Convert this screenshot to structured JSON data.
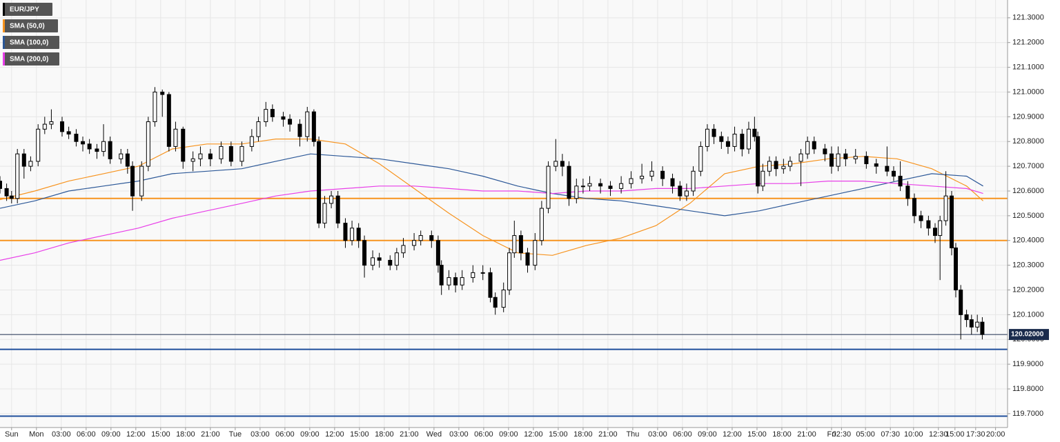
{
  "chart_data": {
    "type": "candlestick",
    "name": "EUR/JPY",
    "color": "#000000",
    "up_color": "#ffffff",
    "x": [
      -1.4,
      -0.6,
      0,
      0.7,
      1.5,
      2.3,
      3.2,
      4.0,
      4.8,
      6.1,
      6.9,
      7.8,
      8.6,
      9.4,
      10.3,
      11.1,
      11.9,
      13.2,
      14.0,
      14.6,
      15.7,
      16.5,
      17.3,
      18.2,
      19.0,
      19.8,
      20.7,
      21.9,
      22.8,
      24.0,
      25.3,
      26.5,
      27.8,
      29.0,
      29.8,
      30.7,
      31.5,
      32.8,
      33.6,
      34.8,
      35.7,
      36.5,
      37.1,
      37.8,
      38.6,
      39.4,
      40.3,
      41.1,
      41.9,
      42.6,
      43.6,
      44.4,
      45.7,
      46.5,
      47.3,
      48.6,
      49.4,
      50.7,
      51.5,
      51.9,
      52.8,
      53.6,
      54.4,
      55.7,
      56.9,
      57.8,
      58.4,
      59.4,
      60.1,
      60.7,
      61.5,
      62.3,
      63.2,
      64.0,
      64.8,
      65.7,
      66.5,
      67.3,
      68.2,
      69.0,
      69.8,
      71.1,
      72.3,
      73.6,
      74.8,
      76.1,
      77.3,
      78.6,
      79.8,
      80.7,
      81.5,
      82.3,
      83.2,
      84.0,
      84.8,
      85.7,
      86.5,
      87.3,
      88.2,
      89.0,
      89.7,
      90.1,
      90.7,
      91.5,
      92.3,
      93.2,
      94.0,
      95.3,
      96.1,
      96.9,
      98.2,
      99.0,
      99.8,
      100.7,
      101.9,
      103.2,
      104.4,
      105.7,
      106.5,
      107.3,
      108.2,
      109.0,
      109.8,
      110.7,
      111.5,
      112.1,
      112.8,
      113.5,
      114.0,
      114.6,
      115.3,
      115.9,
      116.6,
      117.2
    ],
    "open": [
      120.64,
      120.61,
      120.58,
      120.57,
      120.75,
      120.7,
      120.72,
      120.85,
      120.87,
      120.88,
      120.84,
      120.83,
      120.8,
      120.79,
      120.77,
      120.76,
      120.8,
      120.73,
      120.75,
      120.7,
      120.58,
      120.7,
      120.88,
      121.0,
      120.99,
      120.78,
      120.85,
      120.72,
      120.73,
      120.75,
      120.73,
      120.78,
      120.72,
      120.78,
      120.82,
      120.88,
      120.93,
      120.9,
      120.89,
      120.87,
      120.82,
      120.92,
      120.8,
      120.47,
      120.55,
      120.58,
      120.47,
      120.4,
      120.45,
      120.4,
      120.3,
      120.33,
      120.32,
      120.3,
      120.35,
      120.38,
      120.4,
      120.42,
      120.4,
      120.3,
      120.22,
      120.25,
      120.22,
      120.25,
      120.27,
      120.27,
      120.17,
      120.13,
      120.2,
      120.35,
      120.42,
      120.35,
      120.3,
      120.4,
      120.53,
      120.7,
      120.72,
      120.7,
      120.57,
      120.62,
      120.62,
      120.63,
      120.62,
      120.61,
      120.63,
      120.65,
      120.66,
      120.68,
      120.65,
      120.62,
      120.58,
      120.6,
      120.68,
      120.78,
      120.85,
      120.82,
      120.8,
      120.78,
      120.83,
      120.77,
      120.85,
      120.82,
      120.62,
      120.68,
      120.72,
      120.69,
      120.7,
      120.72,
      120.75,
      120.8,
      120.77,
      120.75,
      120.7,
      120.75,
      120.73,
      120.74,
      120.71,
      120.7,
      120.68,
      120.66,
      120.62,
      120.57,
      120.5,
      120.48,
      120.45,
      120.42,
      120.48,
      120.58,
      120.37,
      120.2,
      120.1,
      120.08,
      120.05,
      120.07
    ],
    "high": [
      120.66,
      120.63,
      120.6,
      120.77,
      120.77,
      120.74,
      120.87,
      120.9,
      120.93,
      120.9,
      120.86,
      120.85,
      120.82,
      120.81,
      120.79,
      120.87,
      120.82,
      120.77,
      120.77,
      120.72,
      120.72,
      120.9,
      121.02,
      121.01,
      121.0,
      120.88,
      120.86,
      120.76,
      120.78,
      120.77,
      120.8,
      120.8,
      120.8,
      120.85,
      120.9,
      120.96,
      120.95,
      120.92,
      120.91,
      120.89,
      120.94,
      120.93,
      120.82,
      120.58,
      120.6,
      120.6,
      120.49,
      120.48,
      120.47,
      120.42,
      120.36,
      120.35,
      120.34,
      120.37,
      120.41,
      120.43,
      120.44,
      120.44,
      120.42,
      120.32,
      120.28,
      120.27,
      120.28,
      120.3,
      120.3,
      120.29,
      120.19,
      120.23,
      120.37,
      120.48,
      120.44,
      120.37,
      120.43,
      120.56,
      120.72,
      120.81,
      120.75,
      120.72,
      120.65,
      120.65,
      120.66,
      120.65,
      120.64,
      120.66,
      120.68,
      120.71,
      120.72,
      120.7,
      120.67,
      120.64,
      120.63,
      120.7,
      120.8,
      120.87,
      120.87,
      120.84,
      120.82,
      120.86,
      120.85,
      120.88,
      120.9,
      120.84,
      120.71,
      120.74,
      120.74,
      120.73,
      120.74,
      120.77,
      120.82,
      120.82,
      120.79,
      120.78,
      120.78,
      120.77,
      120.77,
      120.76,
      120.73,
      120.78,
      120.7,
      120.72,
      120.64,
      120.59,
      120.52,
      120.5,
      120.47,
      120.5,
      120.68,
      120.6,
      120.39,
      120.22,
      120.12,
      120.1,
      120.1,
      120.09
    ],
    "low": [
      120.59,
      120.56,
      120.55,
      120.55,
      120.65,
      120.68,
      120.7,
      120.83,
      120.85,
      120.82,
      120.81,
      120.78,
      120.76,
      120.75,
      120.73,
      120.74,
      120.71,
      120.71,
      120.67,
      120.52,
      120.56,
      120.68,
      120.86,
      120.9,
      120.76,
      120.76,
      120.69,
      120.68,
      120.7,
      120.7,
      120.71,
      120.7,
      120.7,
      120.76,
      120.8,
      120.86,
      120.88,
      120.86,
      120.84,
      120.78,
      120.8,
      120.78,
      120.45,
      120.45,
      120.53,
      120.45,
      120.37,
      120.38,
      120.37,
      120.25,
      120.28,
      120.29,
      120.28,
      120.28,
      120.33,
      120.36,
      120.38,
      120.37,
      120.27,
      120.18,
      120.2,
      120.19,
      120.2,
      120.23,
      120.24,
      120.15,
      120.1,
      120.11,
      120.18,
      120.33,
      120.32,
      120.27,
      120.28,
      120.38,
      120.51,
      120.68,
      120.66,
      120.54,
      120.55,
      120.59,
      120.6,
      120.59,
      120.58,
      120.59,
      120.61,
      120.63,
      120.64,
      120.62,
      120.59,
      120.56,
      120.56,
      120.58,
      120.66,
      120.76,
      120.79,
      120.77,
      120.75,
      120.76,
      120.74,
      120.75,
      120.8,
      120.59,
      120.6,
      120.66,
      120.66,
      120.67,
      120.68,
      120.62,
      120.73,
      120.75,
      120.72,
      120.67,
      120.68,
      120.7,
      120.71,
      120.69,
      120.67,
      120.66,
      120.64,
      120.6,
      120.54,
      120.47,
      120.45,
      120.42,
      120.39,
      120.24,
      120.46,
      120.34,
      120.17,
      120.0,
      120.05,
      120.02,
      120.03,
      120.0
    ],
    "close": [
      120.61,
      120.58,
      120.57,
      120.75,
      120.7,
      120.72,
      120.85,
      120.87,
      120.88,
      120.84,
      120.83,
      120.8,
      120.79,
      120.77,
      120.76,
      120.8,
      120.73,
      120.75,
      120.7,
      120.58,
      120.7,
      120.88,
      121.0,
      120.99,
      120.78,
      120.85,
      120.72,
      120.73,
      120.75,
      120.73,
      120.78,
      120.72,
      120.78,
      120.82,
      120.88,
      120.93,
      120.9,
      120.89,
      120.87,
      120.82,
      120.92,
      120.8,
      120.47,
      120.55,
      120.58,
      120.47,
      120.4,
      120.45,
      120.4,
      120.3,
      120.33,
      120.32,
      120.3,
      120.35,
      120.38,
      120.4,
      120.42,
      120.4,
      120.3,
      120.22,
      120.25,
      120.22,
      120.25,
      120.27,
      120.27,
      120.17,
      120.13,
      120.2,
      120.35,
      120.42,
      120.35,
      120.3,
      120.4,
      120.53,
      120.7,
      120.72,
      120.7,
      120.57,
      120.62,
      120.62,
      120.63,
      120.62,
      120.61,
      120.63,
      120.65,
      120.66,
      120.68,
      120.65,
      120.62,
      120.58,
      120.6,
      120.68,
      120.78,
      120.85,
      120.82,
      120.8,
      120.78,
      120.83,
      120.77,
      120.85,
      120.82,
      120.62,
      120.68,
      120.72,
      120.69,
      120.7,
      120.72,
      120.75,
      120.8,
      120.77,
      120.75,
      120.7,
      120.75,
      120.73,
      120.74,
      120.71,
      120.7,
      120.68,
      120.66,
      120.62,
      120.57,
      120.5,
      120.48,
      120.45,
      120.42,
      120.48,
      120.58,
      120.37,
      120.2,
      120.1,
      120.08,
      120.05,
      120.07,
      120.02
    ],
    "sma_x": [
      -1.4,
      2.8,
      6.9,
      11.1,
      15.3,
      19.4,
      23.6,
      27.8,
      31.9,
      36.1,
      40.3,
      44.4,
      48.6,
      52.8,
      56.9,
      61.1,
      65.3,
      69.4,
      73.6,
      77.8,
      81.9,
      86.1,
      90.3,
      94.4,
      98.6,
      102.8,
      106.9,
      111.1,
      115.3,
      117.3
    ],
    "sma": [
      {
        "name": "SMA (50,0)",
        "color": "#f7931e",
        "values": [
          120.565,
          120.6,
          120.64,
          120.67,
          120.7,
          120.77,
          120.79,
          120.79,
          120.81,
          120.81,
          120.79,
          120.71,
          120.61,
          120.51,
          120.42,
          120.35,
          120.34,
          120.38,
          120.41,
          120.46,
          120.55,
          120.67,
          120.7,
          120.71,
          120.73,
          120.74,
          120.73,
          120.69,
          120.62,
          120.56
        ]
      },
      {
        "name": "SMA (100,0)",
        "color": "#2b5797",
        "values": [
          120.53,
          120.56,
          120.6,
          120.62,
          120.64,
          120.67,
          120.68,
          120.69,
          120.72,
          120.75,
          120.74,
          120.73,
          120.71,
          120.69,
          120.66,
          120.62,
          120.59,
          120.57,
          120.56,
          120.54,
          120.52,
          120.5,
          120.52,
          120.55,
          120.58,
          120.61,
          120.64,
          120.67,
          120.66,
          120.62
        ]
      },
      {
        "name": "SMA (200,0)",
        "color": "#e83ee8",
        "values": [
          120.32,
          120.35,
          120.39,
          120.42,
          120.45,
          120.49,
          120.52,
          120.55,
          120.58,
          120.6,
          120.61,
          120.62,
          120.62,
          120.61,
          120.6,
          120.6,
          120.59,
          120.6,
          120.6,
          120.61,
          120.61,
          120.62,
          120.63,
          120.63,
          120.64,
          120.64,
          120.63,
          120.62,
          120.61,
          120.59
        ]
      }
    ],
    "levels": [
      {
        "value": 120.57,
        "color": "#f7931e"
      },
      {
        "value": 120.4,
        "color": "#f7931e"
      },
      {
        "value": 119.96,
        "color": "#1f4e9c"
      },
      {
        "value": 119.69,
        "color": "#1f4e9c"
      }
    ],
    "last_price": {
      "value": 120.02,
      "label": "120.02000"
    },
    "xlim": [
      -1.4,
      120.25
    ],
    "ylim": [
      119.644,
      121.372
    ],
    "xticks": [
      {
        "value": 0,
        "label": "Sun"
      },
      {
        "value": 3,
        "label": "Mon"
      },
      {
        "value": 6,
        "label": "03:00"
      },
      {
        "value": 9,
        "label": "06:00"
      },
      {
        "value": 12,
        "label": "09:00"
      },
      {
        "value": 15,
        "label": "12:00"
      },
      {
        "value": 18,
        "label": "15:00"
      },
      {
        "value": 21,
        "label": "18:00"
      },
      {
        "value": 24,
        "label": "21:00"
      },
      {
        "value": 27,
        "label": "Tue"
      },
      {
        "value": 30,
        "label": "03:00"
      },
      {
        "value": 33,
        "label": "06:00"
      },
      {
        "value": 36,
        "label": "09:00"
      },
      {
        "value": 39,
        "label": "12:00"
      },
      {
        "value": 42,
        "label": "15:00"
      },
      {
        "value": 45,
        "label": "18:00"
      },
      {
        "value": 48,
        "label": "21:00"
      },
      {
        "value": 51,
        "label": "Wed"
      },
      {
        "value": 54,
        "label": "03:00"
      },
      {
        "value": 57,
        "label": "06:00"
      },
      {
        "value": 60,
        "label": "09:00"
      },
      {
        "value": 63,
        "label": "12:00"
      },
      {
        "value": 66,
        "label": "15:00"
      },
      {
        "value": 69,
        "label": "18:00"
      },
      {
        "value": 72,
        "label": "21:00"
      },
      {
        "value": 75,
        "label": "Thu"
      },
      {
        "value": 78,
        "label": "03:00"
      },
      {
        "value": 81,
        "label": "06:00"
      },
      {
        "value": 84,
        "label": "09:00"
      },
      {
        "value": 87,
        "label": "12:00"
      },
      {
        "value": 90,
        "label": "15:00"
      },
      {
        "value": 93,
        "label": "18:00"
      },
      {
        "value": 96,
        "label": "21:00"
      },
      {
        "value": 99,
        "label": "Fri"
      },
      {
        "value": 100.2,
        "label": "02:30"
      },
      {
        "value": 103.1,
        "label": "05:00"
      },
      {
        "value": 106.1,
        "label": "07:30"
      },
      {
        "value": 108.9,
        "label": "10:00"
      },
      {
        "value": 111.9,
        "label": "12:30"
      },
      {
        "value": 113.9,
        "label": "15:00"
      },
      {
        "value": 116.4,
        "label": "17:30"
      },
      {
        "value": 118.8,
        "label": "20:00"
      }
    ],
    "yticks": [
      {
        "value": 121.3,
        "label": "121.3000"
      },
      {
        "value": 121.2,
        "label": "121.2000"
      },
      {
        "value": 121.1,
        "label": "121.1000"
      },
      {
        "value": 121.0,
        "label": "121.0000"
      },
      {
        "value": 120.9,
        "label": "120.9000"
      },
      {
        "value": 120.8,
        "label": "120.8000"
      },
      {
        "value": 120.7,
        "label": "120.7000"
      },
      {
        "value": 120.6,
        "label": "120.6000"
      },
      {
        "value": 120.5,
        "label": "120.5000"
      },
      {
        "value": 120.4,
        "label": "120.4000"
      },
      {
        "value": 120.3,
        "label": "120.3000"
      },
      {
        "value": 120.2,
        "label": "120.2000"
      },
      {
        "value": 120.1,
        "label": "120.1000"
      },
      {
        "value": 120.0,
        "label": "120.0000"
      },
      {
        "value": 119.9,
        "label": "119.9000"
      },
      {
        "value": 119.8,
        "label": "119.8000"
      },
      {
        "value": 119.7,
        "label": "119.7000"
      }
    ],
    "grid": true,
    "legend": "top-left"
  }
}
